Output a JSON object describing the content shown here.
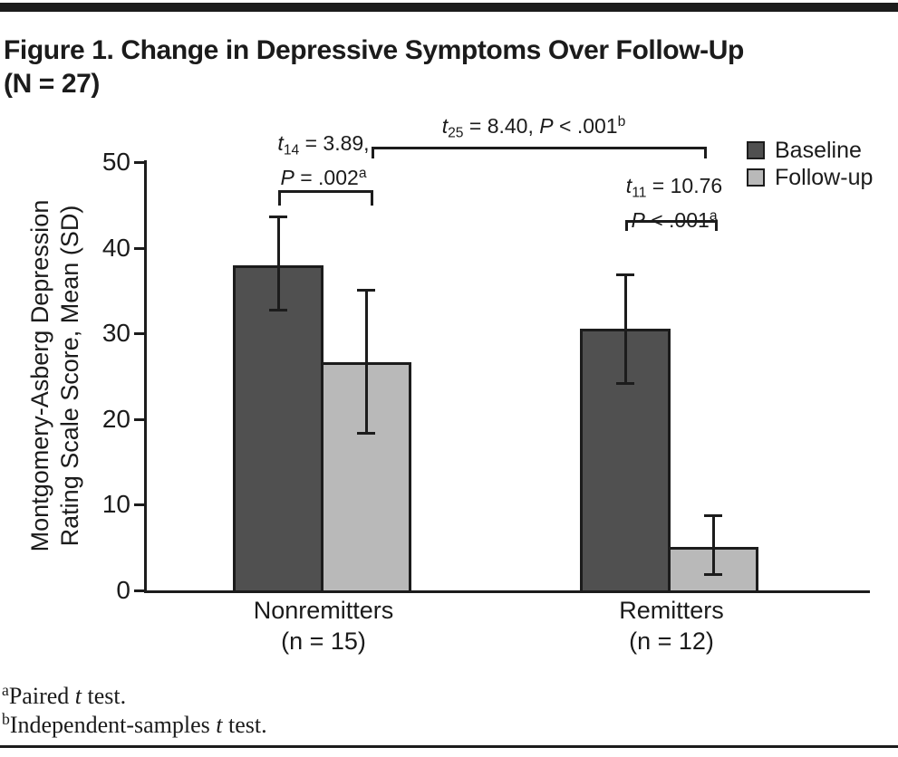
{
  "header": {
    "line1": "Figure 1. Change in Depressive Symptoms Over Follow-Up",
    "line2": "(N = 27)"
  },
  "chart_data": {
    "type": "bar",
    "title": "Figure 1. Change in Depressive Symptoms Over Follow-Up (N = 27)",
    "ylabel": "Montgomery-Asberg Depression Rating Scale Score, Mean (SD)",
    "ylabel_lines": [
      "Montgomery-Asberg Depression",
      "Rating Scale Score, Mean (SD)"
    ],
    "xlabel": "",
    "ylim": [
      0,
      50
    ],
    "yticks": [
      0,
      10,
      20,
      30,
      40,
      50
    ],
    "grid": false,
    "legend_position": "top-right",
    "categories": [
      {
        "label": "Nonremitters",
        "sub": "(n = 15)"
      },
      {
        "label": "Remitters",
        "sub": "(n = 12)"
      }
    ],
    "series": [
      {
        "name": "Baseline",
        "color": "#505050",
        "values": [
          38.0,
          30.5
        ],
        "error_low": [
          32.8,
          24.2
        ],
        "error_high": [
          43.7,
          36.9
        ]
      },
      {
        "name": "Follow-up",
        "color": "#b9b9b9",
        "values": [
          26.6,
          5.1
        ],
        "error_low": [
          18.4,
          1.9
        ],
        "error_high": [
          35.1,
          8.8
        ]
      }
    ],
    "annotations": [
      {
        "id": "between-groups",
        "text": "t₂₅ = 8.40, P < .001ᵇ",
        "compares": "Follow-up: Nonremitters vs Remitters",
        "lines": [
          [
            {
              "t": "t",
              "i": true
            },
            {
              "t": "25",
              "sub": true
            },
            {
              "t": " = 8.40, "
            },
            {
              "t": "P",
              "i": true
            },
            {
              "t": " < .001"
            },
            {
              "t": "b",
              "sup": true
            }
          ]
        ]
      },
      {
        "id": "paired-nonremitters",
        "text": "t₁₄ = 3.89, P = .002ᵃ",
        "compares": "Nonremitters: Baseline vs Follow-up",
        "lines": [
          [
            {
              "t": "t",
              "i": true
            },
            {
              "t": "14",
              "sub": true
            },
            {
              "t": " = 3.89,"
            }
          ],
          [
            {
              "t": "P",
              "i": true
            },
            {
              "t": " = .002"
            },
            {
              "t": "a",
              "sup": true
            }
          ]
        ]
      },
      {
        "id": "paired-remitters",
        "text": "t₁₁ = 10.76, P < .001ᵃ",
        "compares": "Remitters: Baseline vs Follow-up",
        "lines": [
          [
            {
              "t": "t",
              "i": true
            },
            {
              "t": "11",
              "sub": true
            },
            {
              "t": " = 10.76"
            }
          ],
          [
            {
              "t": "P",
              "i": true
            },
            {
              "t": " < .001"
            },
            {
              "t": "a",
              "sup": true
            }
          ]
        ]
      }
    ]
  },
  "footnotes": {
    "a": {
      "text": "ᵃPaired t test.",
      "runs": [
        {
          "t": "a",
          "sup": true
        },
        {
          "t": "Paired "
        },
        {
          "t": "t",
          "i": true
        },
        {
          "t": " test."
        }
      ]
    },
    "b": {
      "text": "ᵇIndependent-samples t test.",
      "runs": [
        {
          "t": "b",
          "sup": true
        },
        {
          "t": "Independent-samples "
        },
        {
          "t": "t",
          "i": true
        },
        {
          "t": " test."
        }
      ]
    }
  },
  "colors": {
    "baseline_bar": "#505050",
    "followup_bar": "#b9b9b9",
    "stroke": "#1c1c1c",
    "background": "#ffffff"
  }
}
